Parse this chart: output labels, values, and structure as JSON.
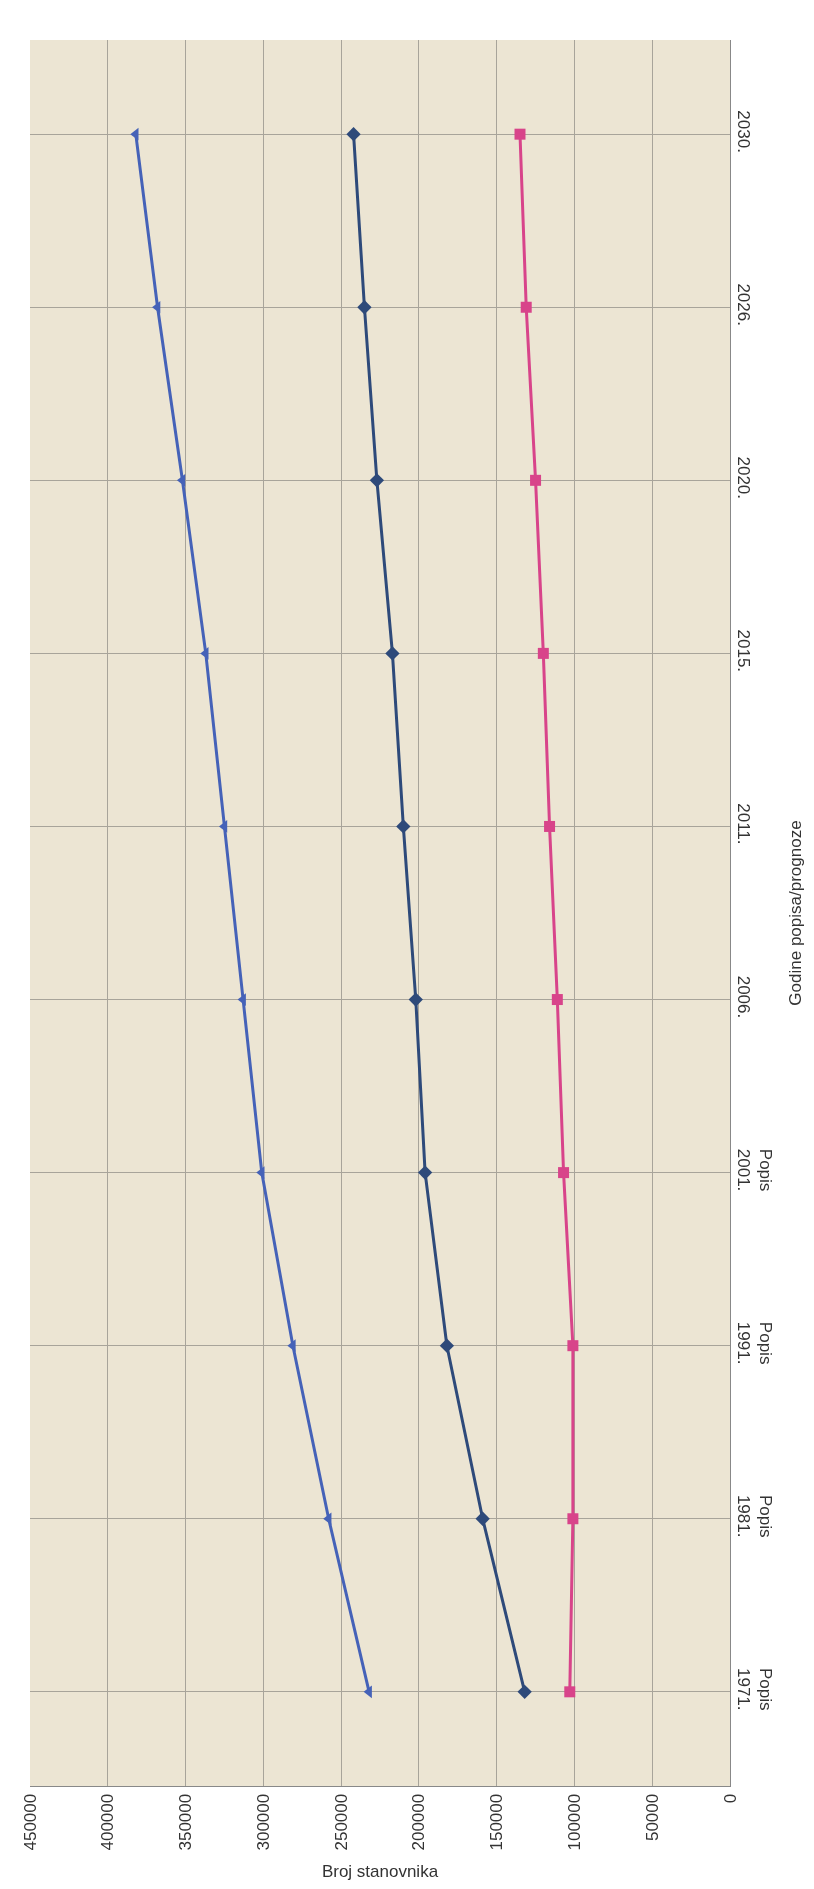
{
  "chart_data": {
    "type": "line",
    "orientation": "horizontal",
    "xlabel": "Broj stanovnika",
    "ylabel": "Godine popisa/prognoze",
    "categories": [
      "2030.",
      "2026.",
      "2020.",
      "2015.",
      "2011.",
      "2006.",
      "Popis\n2001.",
      "Popis\n1991.",
      "Popis\n1981.",
      "Popis\n1971."
    ],
    "series": [
      {
        "color": "#4562b8",
        "marker": "triangle",
        "values": [
          382000,
          368000,
          352000,
          337000,
          325000,
          313000,
          301000,
          281000,
          258000,
          232000
        ]
      },
      {
        "color": "#2e4a7a",
        "marker": "diamond",
        "values": [
          242000,
          235000,
          227000,
          217000,
          210000,
          202000,
          196000,
          182000,
          159000,
          132000
        ]
      },
      {
        "color": "#d8448a",
        "marker": "square",
        "values": [
          135000,
          131000,
          125000,
          120000,
          116000,
          111000,
          107000,
          101000,
          101000,
          103000
        ]
      }
    ],
    "xlim": [
      450000,
      0
    ],
    "xticks": [
      450000,
      400000,
      350000,
      300000,
      250000,
      200000,
      150000,
      100000,
      50000,
      0
    ],
    "grid": true
  }
}
